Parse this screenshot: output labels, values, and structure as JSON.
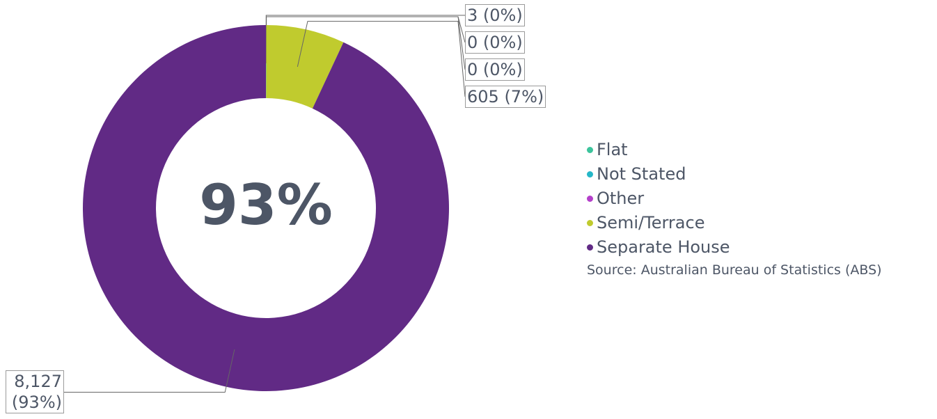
{
  "chart_data": {
    "type": "donut",
    "categories": [
      "Flat",
      "Not Stated",
      "Other",
      "Semi/Terrace",
      "Separate House"
    ],
    "values": [
      3,
      0,
      0,
      605,
      8127
    ],
    "value_labels": [
      "3 (0%)",
      "0 (0%)",
      "0 (0%)",
      "605 (7%)",
      "8,127 (93%)"
    ],
    "colors": [
      "#3cc49c",
      "#25b7c8",
      "#b43fca",
      "#c0cb2e",
      "#612a85"
    ],
    "center_label": "93%",
    "source": "Source: Australian Bureau of Statistics (ABS)"
  }
}
